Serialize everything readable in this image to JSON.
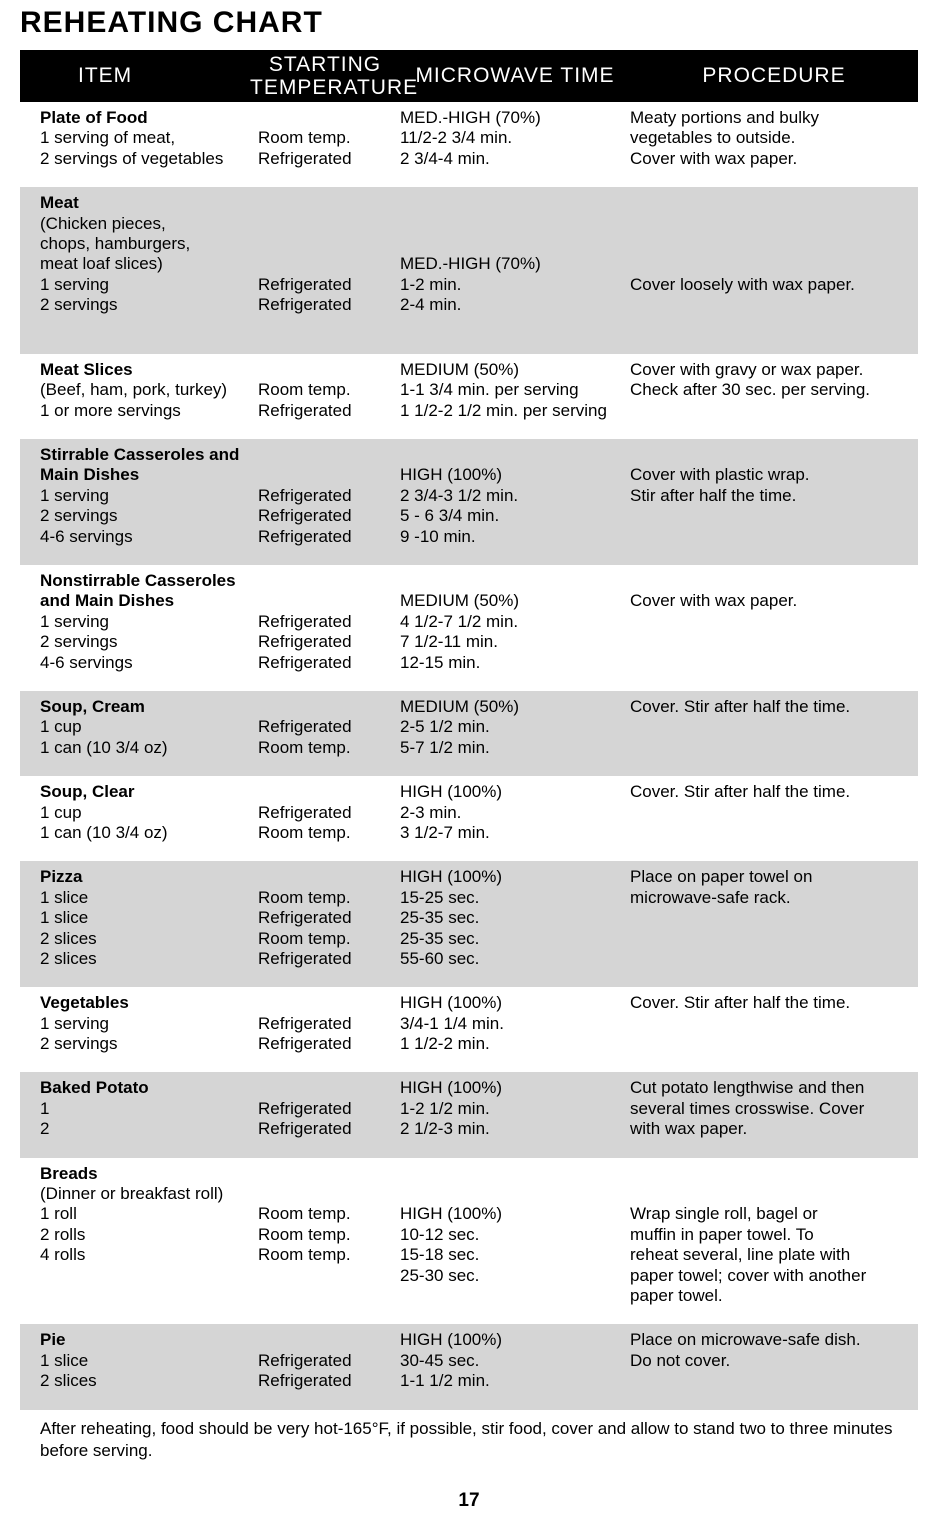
{
  "title": "REHEATING CHART",
  "headers": {
    "item": "ITEM",
    "temp1": "STARTING",
    "temp2": "TEMPERATURE",
    "time": "MICROWAVE TIME",
    "proc": "PROCEDURE"
  },
  "rows": [
    {
      "shaded": false,
      "item_title": "Plate of Food",
      "item_lines": [
        "1 serving of meat,",
        "2 servings of vegetables"
      ],
      "temp_lines": [
        "Room temp.",
        "Refrigerated"
      ],
      "time_power": "MED.-HIGH (70%)",
      "time_lines": [
        "11/2-2 3/4 min.",
        "2 3/4-4 min."
      ],
      "proc_lines": [
        "Meaty portions and bulky",
        "vegetables to outside.",
        "Cover with wax paper."
      ],
      "proc_top": true,
      "temp_bottom": true
    },
    {
      "shaded": true,
      "item_title": "Meat",
      "item_lines": [
        "(Chicken pieces,",
        "chops, hamburgers,",
        "meat loaf slices)",
        "1 serving",
        "2 servings"
      ],
      "temp_lines": [
        "Refrigerated",
        "Refrigerated"
      ],
      "time_power": "MED.-HIGH (70%)",
      "time_lines": [
        "1-2 min.",
        "2-4 min."
      ],
      "time_extra_spacer": true,
      "proc_lines": [
        "Cover loosely with wax paper."
      ],
      "proc_mid": true,
      "temp_bottom": true,
      "extra_bottom": true
    },
    {
      "shaded": false,
      "item_title": "Meat Slices",
      "item_lines": [
        "(Beef, ham, pork, turkey)",
        "1 or more servings"
      ],
      "temp_lines": [
        "Room temp.",
        "Refrigerated"
      ],
      "time_power": "MEDIUM (50%)",
      "time_lines": [
        "1-1 3/4 min. per serving",
        "1 1/2-2 1/2 min. per serving"
      ],
      "proc_lines": [
        "Cover with gravy or wax paper.",
        "Check after 30 sec. per serving."
      ],
      "proc_align_power": true,
      "temp_bottom": true
    },
    {
      "shaded": true,
      "item_title": "Stirrable Casseroles and Main Dishes",
      "item_title_multiline": [
        "Stirrable Casseroles and",
        "Main Dishes"
      ],
      "item_lines": [
        "1 serving",
        "2 servings",
        "4-6 servings"
      ],
      "temp_lines": [
        "Refrigerated",
        "Refrigerated",
        "Refrigerated"
      ],
      "time_power": "HIGH (100%)",
      "time_lines": [
        "2 3/4-3 1/2 min.",
        "5 - 6 3/4 min.",
        "9 -10 min."
      ],
      "proc_lines": [
        "Cover with plastic wrap.",
        "Stir after half the time."
      ],
      "proc_align_power": true,
      "temp_bottom": true
    },
    {
      "shaded": false,
      "item_title_multiline": [
        "Nonstirrable Casseroles",
        "and Main Dishes"
      ],
      "item_lines": [
        "1 serving",
        "2 servings",
        "4-6 servings"
      ],
      "temp_lines": [
        "Refrigerated",
        "Refrigerated",
        "Refrigerated"
      ],
      "time_power": "MEDIUM (50%)",
      "time_lines": [
        "4 1/2-7 1/2 min.",
        "7 1/2-11 min.",
        "12-15 min."
      ],
      "proc_lines": [
        "Cover with wax paper."
      ],
      "proc_align_power": true,
      "temp_bottom": true
    },
    {
      "shaded": true,
      "item_title": "Soup, Cream",
      "item_lines": [
        "1 cup",
        "1 can (10 3/4 oz)"
      ],
      "temp_lines": [
        "Refrigerated",
        "Room temp."
      ],
      "time_power": "MEDIUM (50%)",
      "time_lines": [
        "2-5 1/2 min.",
        "5-7 1/2 min."
      ],
      "proc_lines": [
        "Cover. Stir after half the time."
      ],
      "proc_mid2": true,
      "temp_bottom": true
    },
    {
      "shaded": false,
      "item_title": "Soup, Clear",
      "item_lines": [
        "1 cup",
        "1 can (10 3/4 oz)"
      ],
      "temp_lines": [
        "Refrigerated",
        "Room temp."
      ],
      "time_power": "HIGH (100%)",
      "time_lines": [
        "2-3 min.",
        "3 1/2-7 min."
      ],
      "proc_lines": [
        "Cover. Stir after half the time."
      ],
      "proc_mid2": true,
      "temp_bottom": true
    },
    {
      "shaded": true,
      "item_title": "Pizza",
      "item_lines": [
        "1 slice",
        "1 slice",
        "2 slices",
        "2 slices"
      ],
      "temp_lines": [
        "Room temp.",
        "Refrigerated",
        "Room temp.",
        "Refrigerated"
      ],
      "time_power": "HIGH (100%)",
      "time_lines": [
        "15-25 sec.",
        "25-35 sec.",
        "25-35 sec.",
        "55-60 sec."
      ],
      "proc_lines": [
        "Place on paper towel on",
        "microwave-safe rack."
      ],
      "proc_mid2": true,
      "temp_bottom": true
    },
    {
      "shaded": false,
      "item_title": "Vegetables",
      "item_lines": [
        "1 serving",
        "2 servings"
      ],
      "temp_lines": [
        "Refrigerated",
        "Refrigerated"
      ],
      "time_power": "HIGH (100%)",
      "time_lines": [
        "3/4-1 1/4 min.",
        "1 1/2-2 min."
      ],
      "proc_lines": [
        "Cover. Stir after half the time."
      ],
      "proc_top": true,
      "temp_bottom": true
    },
    {
      "shaded": true,
      "item_title": "Baked Potato",
      "item_lines": [
        "1",
        "2"
      ],
      "temp_lines": [
        "Refrigerated",
        "Refrigerated"
      ],
      "time_power": "HIGH (100%)",
      "time_lines": [
        "1-2 1/2 min.",
        "2 1/2-3 min."
      ],
      "proc_lines": [
        "Cut potato lengthwise and then",
        "several times crosswise. Cover",
        "with wax paper."
      ],
      "proc_top": true,
      "temp_bottom": true
    },
    {
      "shaded": false,
      "item_title": "Breads",
      "item_lines": [
        "(Dinner or breakfast roll)",
        "1 roll",
        "2 rolls",
        "4 rolls"
      ],
      "temp_lines": [
        "Room temp.",
        "Room temp.",
        "Room temp."
      ],
      "time_power": "HIGH (100%)",
      "time_lines": [
        "10-12 sec.",
        "15-18 sec.",
        "25-30 sec."
      ],
      "proc_lines": [
        "Wrap single roll, bagel or",
        "muffin in paper towel. To",
        "reheat several, line plate with",
        "paper towel; cover with another",
        "paper towel."
      ],
      "proc_mid2": true,
      "temp_bottom": true,
      "time_offset": true
    },
    {
      "shaded": true,
      "item_title": "Pie",
      "item_lines": [
        "1 slice",
        "2 slices"
      ],
      "temp_lines": [
        "Refrigerated",
        "Refrigerated"
      ],
      "time_power": "HIGH (100%)",
      "time_lines": [
        "30-45 sec.",
        "1-1 1/2 min."
      ],
      "proc_lines": [
        "Place on microwave-safe dish.",
        "Do not cover."
      ],
      "proc_mid2": true,
      "temp_bottom": true
    }
  ],
  "footnote": "After reheating, food should be very hot-165°F, if possible, stir food, cover and allow to stand two to three minutes before serving.",
  "page_number": "17",
  "colors": {
    "bg": "#ffffff",
    "text": "#000000",
    "header_bg": "#000000",
    "header_text": "#ffffff",
    "shaded_bg": "#d5d5d5"
  }
}
